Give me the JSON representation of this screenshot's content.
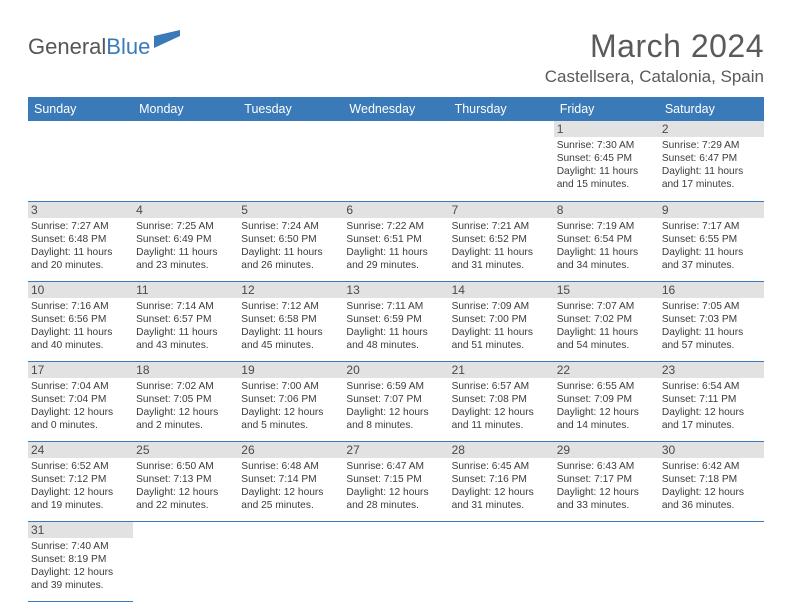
{
  "logo": {
    "t1": "General",
    "t2": "Blue"
  },
  "title": {
    "month": "March 2024",
    "location": "Castellsera, Catalonia, Spain"
  },
  "colors": {
    "header_bg": "#3a7ab8",
    "header_fg": "#ffffff",
    "daynum_bg": "#e2e2e2",
    "rule": "#3a7ab8",
    "text": "#3c3c3c"
  },
  "daysOfWeek": [
    "Sunday",
    "Monday",
    "Tuesday",
    "Wednesday",
    "Thursday",
    "Friday",
    "Saturday"
  ],
  "startOffset": 5,
  "cells": [
    {
      "n": "1",
      "rise": "7:30 AM",
      "set": "6:45 PM",
      "day": "11 hours and 15 minutes."
    },
    {
      "n": "2",
      "rise": "7:29 AM",
      "set": "6:47 PM",
      "day": "11 hours and 17 minutes."
    },
    {
      "n": "3",
      "rise": "7:27 AM",
      "set": "6:48 PM",
      "day": "11 hours and 20 minutes."
    },
    {
      "n": "4",
      "rise": "7:25 AM",
      "set": "6:49 PM",
      "day": "11 hours and 23 minutes."
    },
    {
      "n": "5",
      "rise": "7:24 AM",
      "set": "6:50 PM",
      "day": "11 hours and 26 minutes."
    },
    {
      "n": "6",
      "rise": "7:22 AM",
      "set": "6:51 PM",
      "day": "11 hours and 29 minutes."
    },
    {
      "n": "7",
      "rise": "7:21 AM",
      "set": "6:52 PM",
      "day": "11 hours and 31 minutes."
    },
    {
      "n": "8",
      "rise": "7:19 AM",
      "set": "6:54 PM",
      "day": "11 hours and 34 minutes."
    },
    {
      "n": "9",
      "rise": "7:17 AM",
      "set": "6:55 PM",
      "day": "11 hours and 37 minutes."
    },
    {
      "n": "10",
      "rise": "7:16 AM",
      "set": "6:56 PM",
      "day": "11 hours and 40 minutes."
    },
    {
      "n": "11",
      "rise": "7:14 AM",
      "set": "6:57 PM",
      "day": "11 hours and 43 minutes."
    },
    {
      "n": "12",
      "rise": "7:12 AM",
      "set": "6:58 PM",
      "day": "11 hours and 45 minutes."
    },
    {
      "n": "13",
      "rise": "7:11 AM",
      "set": "6:59 PM",
      "day": "11 hours and 48 minutes."
    },
    {
      "n": "14",
      "rise": "7:09 AM",
      "set": "7:00 PM",
      "day": "11 hours and 51 minutes."
    },
    {
      "n": "15",
      "rise": "7:07 AM",
      "set": "7:02 PM",
      "day": "11 hours and 54 minutes."
    },
    {
      "n": "16",
      "rise": "7:05 AM",
      "set": "7:03 PM",
      "day": "11 hours and 57 minutes."
    },
    {
      "n": "17",
      "rise": "7:04 AM",
      "set": "7:04 PM",
      "day": "12 hours and 0 minutes."
    },
    {
      "n": "18",
      "rise": "7:02 AM",
      "set": "7:05 PM",
      "day": "12 hours and 2 minutes."
    },
    {
      "n": "19",
      "rise": "7:00 AM",
      "set": "7:06 PM",
      "day": "12 hours and 5 minutes."
    },
    {
      "n": "20",
      "rise": "6:59 AM",
      "set": "7:07 PM",
      "day": "12 hours and 8 minutes."
    },
    {
      "n": "21",
      "rise": "6:57 AM",
      "set": "7:08 PM",
      "day": "12 hours and 11 minutes."
    },
    {
      "n": "22",
      "rise": "6:55 AM",
      "set": "7:09 PM",
      "day": "12 hours and 14 minutes."
    },
    {
      "n": "23",
      "rise": "6:54 AM",
      "set": "7:11 PM",
      "day": "12 hours and 17 minutes."
    },
    {
      "n": "24",
      "rise": "6:52 AM",
      "set": "7:12 PM",
      "day": "12 hours and 19 minutes."
    },
    {
      "n": "25",
      "rise": "6:50 AM",
      "set": "7:13 PM",
      "day": "12 hours and 22 minutes."
    },
    {
      "n": "26",
      "rise": "6:48 AM",
      "set": "7:14 PM",
      "day": "12 hours and 25 minutes."
    },
    {
      "n": "27",
      "rise": "6:47 AM",
      "set": "7:15 PM",
      "day": "12 hours and 28 minutes."
    },
    {
      "n": "28",
      "rise": "6:45 AM",
      "set": "7:16 PM",
      "day": "12 hours and 31 minutes."
    },
    {
      "n": "29",
      "rise": "6:43 AM",
      "set": "7:17 PM",
      "day": "12 hours and 33 minutes."
    },
    {
      "n": "30",
      "rise": "6:42 AM",
      "set": "7:18 PM",
      "day": "12 hours and 36 minutes."
    },
    {
      "n": "31",
      "rise": "7:40 AM",
      "set": "8:19 PM",
      "day": "12 hours and 39 minutes."
    }
  ],
  "labels": {
    "sunrise": "Sunrise:",
    "sunset": "Sunset:",
    "daylight": "Daylight:"
  }
}
